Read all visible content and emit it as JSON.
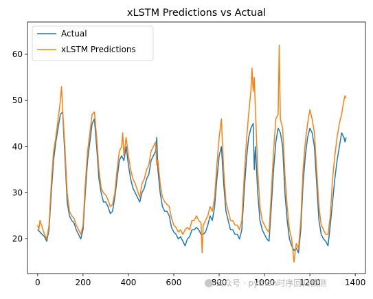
{
  "chart_data": {
    "type": "line",
    "title": "xLSTM Predictions vs Actual",
    "xlabel": "",
    "ylabel": "",
    "xlim": [
      -45,
      1445
    ],
    "ylim": [
      12.5,
      67
    ],
    "xticks": [
      0,
      200,
      400,
      600,
      800,
      1000,
      1200,
      1400
    ],
    "yticks": [
      20,
      30,
      40,
      50,
      60
    ],
    "legend": "upper-left",
    "grid": false,
    "series": [
      {
        "name": "Actual",
        "color": "#1f77b4",
        "points": [
          [
            0,
            22
          ],
          [
            10,
            21.5
          ],
          [
            20,
            21
          ],
          [
            30,
            20.5
          ],
          [
            40,
            19.5
          ],
          [
            50,
            22
          ],
          [
            60,
            30
          ],
          [
            70,
            37
          ],
          [
            80,
            41
          ],
          [
            90,
            44
          ],
          [
            100,
            47
          ],
          [
            110,
            47.5
          ],
          [
            120,
            38
          ],
          [
            130,
            28
          ],
          [
            140,
            25
          ],
          [
            150,
            24
          ],
          [
            160,
            23.5
          ],
          [
            170,
            22
          ],
          [
            180,
            21
          ],
          [
            190,
            20
          ],
          [
            200,
            22
          ],
          [
            210,
            30
          ],
          [
            220,
            37
          ],
          [
            230,
            41
          ],
          [
            240,
            45
          ],
          [
            250,
            46
          ],
          [
            260,
            40
          ],
          [
            270,
            33
          ],
          [
            280,
            30
          ],
          [
            290,
            28
          ],
          [
            300,
            28
          ],
          [
            310,
            27
          ],
          [
            320,
            25.5
          ],
          [
            330,
            26
          ],
          [
            340,
            29
          ],
          [
            350,
            33
          ],
          [
            360,
            37
          ],
          [
            370,
            38
          ],
          [
            380,
            37
          ],
          [
            390,
            40
          ],
          [
            400,
            36
          ],
          [
            410,
            33
          ],
          [
            420,
            31
          ],
          [
            430,
            30
          ],
          [
            440,
            29
          ],
          [
            450,
            28
          ],
          [
            460,
            30
          ],
          [
            470,
            31
          ],
          [
            480,
            33
          ],
          [
            490,
            34
          ],
          [
            500,
            37
          ],
          [
            510,
            38
          ],
          [
            520,
            39
          ],
          [
            525,
            42
          ],
          [
            530,
            35
          ],
          [
            540,
            30
          ],
          [
            550,
            27
          ],
          [
            560,
            26
          ],
          [
            570,
            26
          ],
          [
            580,
            25
          ],
          [
            590,
            22.5
          ],
          [
            600,
            21.5
          ],
          [
            610,
            21
          ],
          [
            620,
            20
          ],
          [
            630,
            20.5
          ],
          [
            640,
            19.5
          ],
          [
            650,
            18.5
          ],
          [
            660,
            20
          ],
          [
            670,
            20.5
          ],
          [
            680,
            22
          ],
          [
            690,
            22
          ],
          [
            700,
            22.5
          ],
          [
            710,
            22
          ],
          [
            720,
            21
          ],
          [
            730,
            21
          ],
          [
            740,
            21.5
          ],
          [
            750,
            23
          ],
          [
            760,
            25
          ],
          [
            770,
            24
          ],
          [
            780,
            27
          ],
          [
            790,
            33
          ],
          [
            800,
            38
          ],
          [
            810,
            40
          ],
          [
            820,
            32
          ],
          [
            830,
            26
          ],
          [
            840,
            24
          ],
          [
            850,
            22
          ],
          [
            860,
            22
          ],
          [
            870,
            21
          ],
          [
            880,
            21
          ],
          [
            890,
            20
          ],
          [
            900,
            22
          ],
          [
            910,
            30
          ],
          [
            920,
            37
          ],
          [
            930,
            42
          ],
          [
            940,
            44
          ],
          [
            950,
            45
          ],
          [
            955,
            35
          ],
          [
            960,
            40
          ],
          [
            970,
            30
          ],
          [
            980,
            24
          ],
          [
            990,
            22
          ],
          [
            1000,
            21
          ],
          [
            1010,
            20
          ],
          [
            1020,
            19.5
          ],
          [
            1030,
            27
          ],
          [
            1040,
            35
          ],
          [
            1050,
            41
          ],
          [
            1060,
            44
          ],
          [
            1070,
            43
          ],
          [
            1080,
            40
          ],
          [
            1090,
            30
          ],
          [
            1100,
            24
          ],
          [
            1110,
            20
          ],
          [
            1120,
            18.5
          ],
          [
            1130,
            17.5
          ],
          [
            1140,
            18
          ],
          [
            1150,
            17
          ],
          [
            1160,
            22
          ],
          [
            1170,
            32
          ],
          [
            1180,
            38
          ],
          [
            1190,
            42
          ],
          [
            1200,
            44
          ],
          [
            1210,
            43
          ],
          [
            1220,
            40
          ],
          [
            1230,
            32
          ],
          [
            1240,
            24
          ],
          [
            1250,
            21
          ],
          [
            1260,
            20
          ],
          [
            1270,
            19.5
          ],
          [
            1280,
            18.5
          ],
          [
            1290,
            23
          ],
          [
            1300,
            28
          ],
          [
            1310,
            33
          ],
          [
            1320,
            37
          ],
          [
            1330,
            40
          ],
          [
            1340,
            43
          ],
          [
            1350,
            42
          ],
          [
            1355,
            41
          ],
          [
            1360,
            42
          ]
        ]
      },
      {
        "name": "xLSTM Predictions",
        "color": "#ff7f0e",
        "points": [
          [
            0,
            23
          ],
          [
            5,
            22
          ],
          [
            10,
            24
          ],
          [
            20,
            22.5
          ],
          [
            30,
            21
          ],
          [
            40,
            20
          ],
          [
            50,
            23
          ],
          [
            60,
            32
          ],
          [
            70,
            39
          ],
          [
            80,
            42
          ],
          [
            90,
            46
          ],
          [
            100,
            50
          ],
          [
            105,
            53
          ],
          [
            110,
            48
          ],
          [
            120,
            40
          ],
          [
            130,
            30
          ],
          [
            140,
            26
          ],
          [
            150,
            25
          ],
          [
            160,
            24.5
          ],
          [
            170,
            23
          ],
          [
            180,
            22
          ],
          [
            190,
            21
          ],
          [
            200,
            23
          ],
          [
            210,
            32
          ],
          [
            220,
            39
          ],
          [
            230,
            43
          ],
          [
            240,
            47
          ],
          [
            250,
            47.5
          ],
          [
            260,
            42
          ],
          [
            270,
            35
          ],
          [
            280,
            31
          ],
          [
            290,
            30
          ],
          [
            300,
            29.5
          ],
          [
            310,
            28.5
          ],
          [
            320,
            27
          ],
          [
            330,
            27.5
          ],
          [
            340,
            30
          ],
          [
            350,
            35
          ],
          [
            360,
            39
          ],
          [
            370,
            40
          ],
          [
            375,
            43
          ],
          [
            380,
            38
          ],
          [
            390,
            42
          ],
          [
            400,
            38
          ],
          [
            410,
            35
          ],
          [
            420,
            33
          ],
          [
            430,
            32
          ],
          [
            440,
            30.5
          ],
          [
            450,
            29
          ],
          [
            460,
            32
          ],
          [
            470,
            33
          ],
          [
            480,
            35
          ],
          [
            490,
            36
          ],
          [
            500,
            39
          ],
          [
            510,
            40
          ],
          [
            520,
            41
          ],
          [
            525,
            36
          ],
          [
            530,
            37
          ],
          [
            540,
            32
          ],
          [
            550,
            29
          ],
          [
            560,
            28
          ],
          [
            570,
            27.5
          ],
          [
            580,
            27
          ],
          [
            590,
            24.5
          ],
          [
            600,
            23
          ],
          [
            610,
            22.5
          ],
          [
            620,
            21.5
          ],
          [
            630,
            22
          ],
          [
            640,
            21
          ],
          [
            650,
            22
          ],
          [
            660,
            22.5
          ],
          [
            670,
            22
          ],
          [
            680,
            24
          ],
          [
            690,
            24
          ],
          [
            700,
            25
          ],
          [
            710,
            24
          ],
          [
            720,
            23.5
          ],
          [
            725,
            17
          ],
          [
            730,
            23
          ],
          [
            740,
            24
          ],
          [
            750,
            25
          ],
          [
            760,
            27
          ],
          [
            770,
            26
          ],
          [
            780,
            29
          ],
          [
            790,
            36
          ],
          [
            800,
            42
          ],
          [
            810,
            46
          ],
          [
            820,
            35
          ],
          [
            830,
            28
          ],
          [
            840,
            26
          ],
          [
            850,
            24
          ],
          [
            860,
            24
          ],
          [
            870,
            23
          ],
          [
            880,
            23
          ],
          [
            890,
            22
          ],
          [
            900,
            24
          ],
          [
            910,
            33
          ],
          [
            920,
            41
          ],
          [
            930,
            47
          ],
          [
            940,
            52
          ],
          [
            945,
            57
          ],
          [
            950,
            52
          ],
          [
            955,
            55
          ],
          [
            960,
            48
          ],
          [
            970,
            35
          ],
          [
            980,
            27
          ],
          [
            990,
            24
          ],
          [
            1000,
            23
          ],
          [
            1010,
            22
          ],
          [
            1020,
            21.5
          ],
          [
            1030,
            30
          ],
          [
            1040,
            39
          ],
          [
            1050,
            46
          ],
          [
            1060,
            47
          ],
          [
            1065,
            62
          ],
          [
            1070,
            46
          ],
          [
            1080,
            44
          ],
          [
            1090,
            34
          ],
          [
            1100,
            27
          ],
          [
            1110,
            22
          ],
          [
            1120,
            20
          ],
          [
            1130,
            15
          ],
          [
            1140,
            19
          ],
          [
            1150,
            18
          ],
          [
            1160,
            24
          ],
          [
            1170,
            35
          ],
          [
            1180,
            41
          ],
          [
            1190,
            45
          ],
          [
            1200,
            48
          ],
          [
            1210,
            46
          ],
          [
            1220,
            43
          ],
          [
            1230,
            35
          ],
          [
            1240,
            27
          ],
          [
            1250,
            23
          ],
          [
            1260,
            22
          ],
          [
            1270,
            21
          ],
          [
            1280,
            21
          ],
          [
            1290,
            25
          ],
          [
            1300,
            33
          ],
          [
            1310,
            38
          ],
          [
            1320,
            42
          ],
          [
            1330,
            45
          ],
          [
            1340,
            47
          ],
          [
            1350,
            50
          ],
          [
            1355,
            51
          ],
          [
            1360,
            50.5
          ]
        ]
      }
    ]
  },
  "watermark": "公众号 · python时序回归预测"
}
